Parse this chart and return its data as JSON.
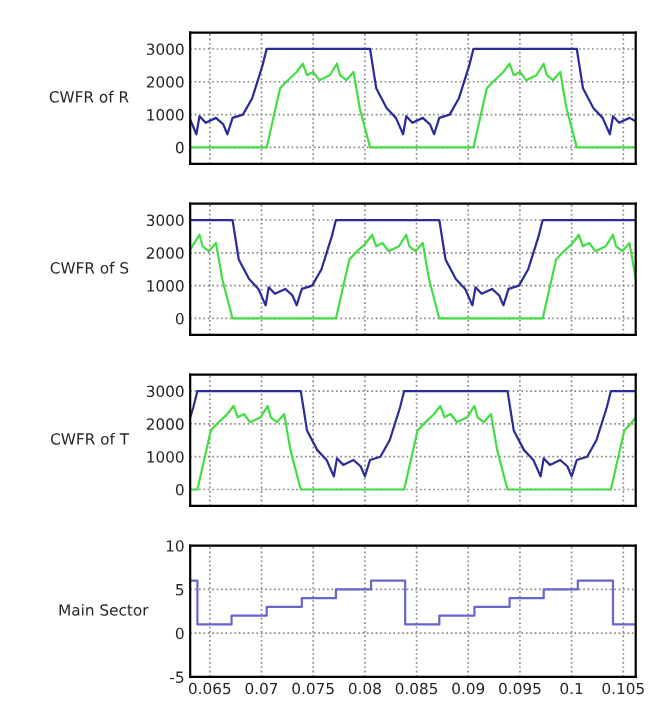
{
  "chart_data": [
    {
      "type": "line",
      "ylabel": "CWFR of R",
      "xlim": [
        0.0631,
        0.1062
      ],
      "ylim": [
        -500,
        3500
      ],
      "yticks": [
        0,
        1000,
        2000,
        3000
      ],
      "xticks": [
        0.065,
        0.07,
        0.075,
        0.08,
        0.085,
        0.09,
        0.095,
        0.1,
        0.105
      ],
      "grid": true,
      "tick_labels": "y",
      "series": [
        {
          "color": "#2b2b9a",
          "x": [
            0.0631,
            0.0637,
            0.064,
            0.0646,
            0.0656,
            0.0663,
            0.0667,
            0.0672,
            0.0682,
            0.0691,
            0.0701,
            0.0705,
            0.0805,
            0.0811,
            0.0821,
            0.083,
            0.0837,
            0.084,
            0.0846,
            0.0856,
            0.0863,
            0.0867,
            0.0872,
            0.0882,
            0.0891,
            0.0901,
            0.0905,
            0.1005,
            0.1011,
            0.1021,
            0.103,
            0.1037,
            0.104,
            0.1046,
            0.1056,
            0.1062
          ],
          "values": [
            850,
            400,
            950,
            750,
            900,
            700,
            400,
            900,
            1000,
            1500,
            2500,
            3000,
            3000,
            1800,
            1200,
            900,
            400,
            950,
            750,
            900,
            700,
            400,
            900,
            1000,
            1500,
            2500,
            3000,
            3000,
            1800,
            1200,
            900,
            400,
            950,
            750,
            900,
            800
          ]
        },
        {
          "color": "#44dd44",
          "x": [
            0.0631,
            0.0705,
            0.0718,
            0.0724,
            0.0734,
            0.074,
            0.0744,
            0.075,
            0.0756,
            0.0766,
            0.0773,
            0.0776,
            0.0782,
            0.0789,
            0.0795,
            0.0805,
            0.0905,
            0.0918,
            0.0924,
            0.0934,
            0.094,
            0.0944,
            0.095,
            0.0956,
            0.0966,
            0.0973,
            0.0976,
            0.0982,
            0.0989,
            0.0995,
            0.1005,
            0.1062
          ],
          "values": [
            0,
            0,
            1800,
            2000,
            2300,
            2550,
            2200,
            2300,
            2050,
            2200,
            2550,
            2200,
            2050,
            2300,
            1200,
            0,
            0,
            1800,
            2000,
            2300,
            2550,
            2200,
            2300,
            2050,
            2200,
            2550,
            2200,
            2050,
            2300,
            1200,
            0,
            0
          ]
        }
      ]
    },
    {
      "type": "line",
      "ylabel": "CWFR of S",
      "xlim": [
        0.0631,
        0.1062
      ],
      "ylim": [
        -500,
        3500
      ],
      "yticks": [
        0,
        1000,
        2000,
        3000
      ],
      "xticks": [
        0.065,
        0.07,
        0.075,
        0.08,
        0.085,
        0.09,
        0.095,
        0.1,
        0.105
      ],
      "grid": true,
      "tick_labels": "y",
      "series": [
        {
          "color": "#2b2b9a",
          "x": [
            0.0631,
            0.0672,
            0.0678,
            0.0688,
            0.0697,
            0.0704,
            0.0707,
            0.0713,
            0.0723,
            0.073,
            0.0734,
            0.0739,
            0.0749,
            0.0758,
            0.0768,
            0.0772,
            0.0872,
            0.0878,
            0.0888,
            0.0897,
            0.0904,
            0.0907,
            0.0913,
            0.0923,
            0.093,
            0.0934,
            0.0939,
            0.0949,
            0.0958,
            0.0968,
            0.0972,
            0.1062
          ],
          "values": [
            3000,
            3000,
            1800,
            1200,
            900,
            400,
            950,
            750,
            900,
            700,
            400,
            900,
            1000,
            1500,
            2500,
            3000,
            3000,
            1800,
            1200,
            900,
            400,
            950,
            750,
            900,
            700,
            400,
            900,
            1000,
            1500,
            2500,
            3000,
            3000
          ]
        },
        {
          "color": "#44dd44",
          "x": [
            0.0631,
            0.064,
            0.0643,
            0.0649,
            0.0656,
            0.0662,
            0.0672,
            0.0772,
            0.0785,
            0.0791,
            0.0801,
            0.0807,
            0.0811,
            0.0817,
            0.0823,
            0.0833,
            0.084,
            0.0843,
            0.0849,
            0.0856,
            0.0862,
            0.0872,
            0.0972,
            0.0985,
            0.0991,
            0.1001,
            0.1007,
            0.1011,
            0.1017,
            0.1023,
            0.1033,
            0.104,
            0.1043,
            0.1049,
            0.1056,
            0.1062
          ],
          "values": [
            2100,
            2550,
            2200,
            2050,
            2300,
            1200,
            0,
            0,
            1800,
            2000,
            2300,
            2550,
            2200,
            2300,
            2050,
            2200,
            2550,
            2200,
            2050,
            2300,
            1200,
            0,
            0,
            1800,
            2000,
            2300,
            2550,
            2200,
            2300,
            2050,
            2200,
            2550,
            2200,
            2050,
            2300,
            1200
          ]
        }
      ]
    },
    {
      "type": "line",
      "ylabel": "CWFR of T",
      "xlim": [
        0.0631,
        0.1062
      ],
      "ylim": [
        -500,
        3500
      ],
      "yticks": [
        0,
        1000,
        2000,
        3000
      ],
      "xticks": [
        0.065,
        0.07,
        0.075,
        0.08,
        0.085,
        0.09,
        0.095,
        0.1,
        0.105
      ],
      "grid": true,
      "tick_labels": "y",
      "series": [
        {
          "color": "#2b2b9a",
          "x": [
            0.0631,
            0.0634,
            0.0638,
            0.0738,
            0.0744,
            0.0754,
            0.0763,
            0.077,
            0.0773,
            0.0779,
            0.0789,
            0.0796,
            0.08,
            0.0805,
            0.0815,
            0.0824,
            0.0834,
            0.0838,
            0.0938,
            0.0944,
            0.0954,
            0.0963,
            0.097,
            0.0973,
            0.0979,
            0.0989,
            0.0996,
            0.1,
            0.1005,
            0.1015,
            0.1024,
            0.1034,
            0.1038,
            0.1062
          ],
          "values": [
            2200,
            2500,
            3000,
            3000,
            1800,
            1200,
            900,
            400,
            950,
            750,
            900,
            700,
            400,
            900,
            1000,
            1500,
            2500,
            3000,
            3000,
            1800,
            1200,
            900,
            400,
            950,
            750,
            900,
            700,
            400,
            900,
            1000,
            1500,
            2500,
            3000,
            3000
          ]
        },
        {
          "color": "#44dd44",
          "x": [
            0.0631,
            0.0638,
            0.0651,
            0.0657,
            0.0667,
            0.0673,
            0.0677,
            0.0683,
            0.0689,
            0.0699,
            0.0706,
            0.0709,
            0.0715,
            0.0722,
            0.0728,
            0.0738,
            0.0838,
            0.0851,
            0.0857,
            0.0867,
            0.0873,
            0.0877,
            0.0883,
            0.0889,
            0.0899,
            0.0906,
            0.0909,
            0.0915,
            0.0922,
            0.0928,
            0.0938,
            0.1038,
            0.1051,
            0.1057,
            0.1062
          ],
          "values": [
            0,
            0,
            1800,
            2000,
            2300,
            2550,
            2200,
            2300,
            2050,
            2200,
            2550,
            2200,
            2050,
            2300,
            1200,
            0,
            0,
            1800,
            2000,
            2300,
            2550,
            2200,
            2300,
            2050,
            2200,
            2550,
            2200,
            2050,
            2300,
            1200,
            0,
            0,
            1800,
            2000,
            2200
          ]
        }
      ]
    },
    {
      "type": "step",
      "ylabel": "Main Sector",
      "xlim": [
        0.0631,
        0.1062
      ],
      "ylim": [
        -5,
        10
      ],
      "yticks": [
        -5,
        0,
        5,
        10
      ],
      "xticks": [
        0.065,
        0.07,
        0.075,
        0.08,
        0.085,
        0.09,
        0.095,
        0.1,
        0.105
      ],
      "grid": true,
      "series": [
        {
          "color": "#6666cc",
          "x": [
            0.0631,
            0.0638,
            0.0671,
            0.0705,
            0.0739,
            0.0772,
            0.0806,
            0.0839,
            0.0872,
            0.0906,
            0.094,
            0.0973,
            0.1006,
            0.104,
            0.1062
          ],
          "values": [
            6,
            1,
            2,
            3,
            4,
            5,
            6,
            1,
            2,
            3,
            4,
            5,
            6,
            1,
            1
          ]
        }
      ]
    }
  ]
}
